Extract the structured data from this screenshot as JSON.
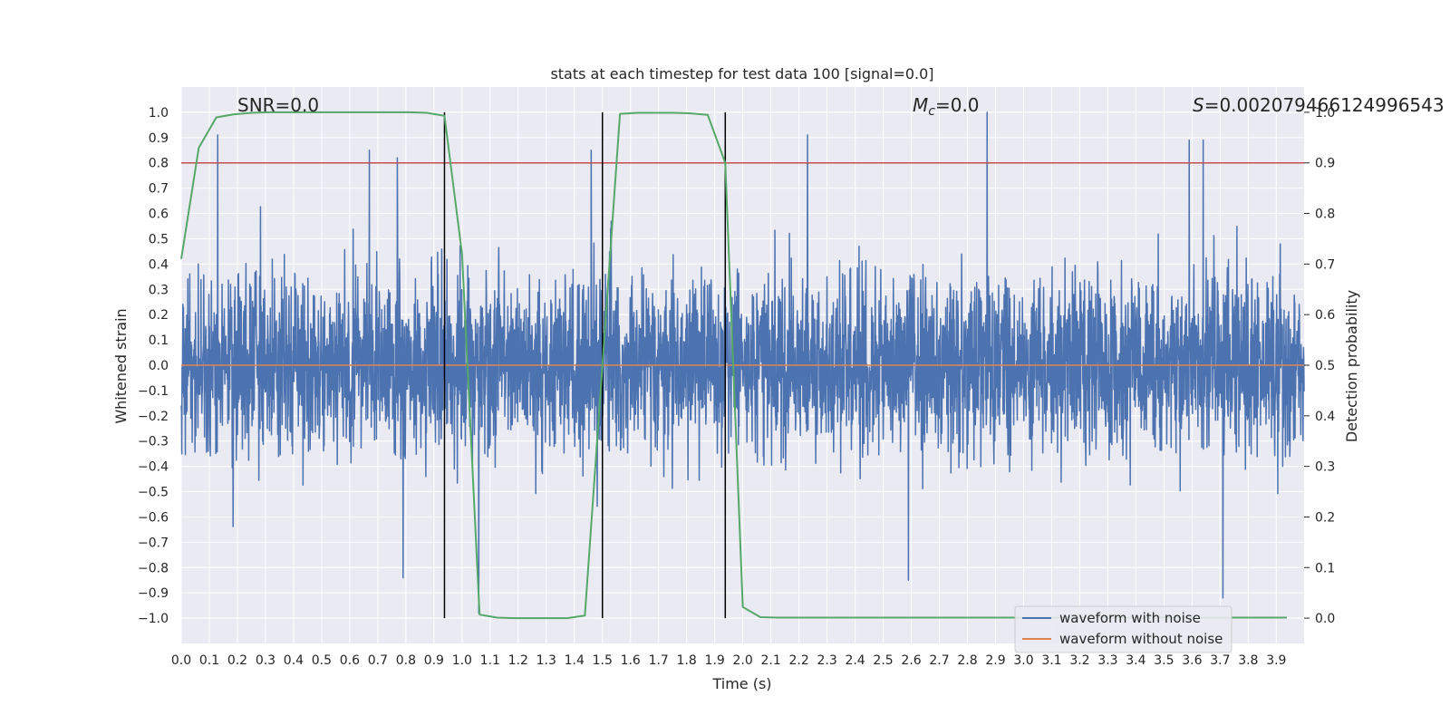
{
  "chart_data": {
    "type": "line",
    "title": "stats at each timestep for test data 100 [signal=0.0]",
    "xlabel": "Time (s)",
    "ylabel": "Whitened strain",
    "y2label": "Detection probability",
    "xlim": [
      0.0,
      3.999
    ],
    "ylim": [
      -1.1,
      1.1
    ],
    "y2lim": [
      -0.05,
      1.05
    ],
    "xticks": [
      "0.0",
      "0.1",
      "0.2",
      "0.3",
      "0.4",
      "0.5",
      "0.6",
      "0.7",
      "0.8",
      "0.9",
      "1.0",
      "1.1",
      "1.2",
      "1.3",
      "1.4",
      "1.5",
      "1.6",
      "1.7",
      "1.8",
      "1.9",
      "2.0",
      "2.1",
      "2.2",
      "2.3",
      "2.4",
      "2.5",
      "2.6",
      "2.7",
      "2.8",
      "2.9",
      "3.0",
      "3.1",
      "3.2",
      "3.3",
      "3.4",
      "3.5",
      "3.6",
      "3.7",
      "3.8",
      "3.9"
    ],
    "yticks": [
      "1.0",
      "0.9",
      "0.8",
      "0.7",
      "0.6",
      "0.5",
      "0.4",
      "0.3",
      "0.2",
      "0.1",
      "0.0",
      "−0.1",
      "−0.2",
      "−0.3",
      "−0.4",
      "−0.5",
      "−0.6",
      "−0.7",
      "−0.8",
      "−0.9",
      "−1.0"
    ],
    "y2ticks": [
      "1.0",
      "0.9",
      "0.8",
      "0.7",
      "0.6",
      "0.5",
      "0.4",
      "0.3",
      "0.2",
      "0.1",
      "0.0"
    ],
    "grid": true,
    "legend": {
      "location": "lower-right",
      "entries": [
        "waveform with noise",
        "waveform without noise"
      ]
    },
    "annotations": {
      "snr": "SNR=0.0",
      "mc_symbol": "M",
      "mc_sub": "c",
      "mc_value": "=0.0",
      "s_symbol": "S",
      "s_value": "=0.002079466124996543"
    },
    "series": [
      {
        "name": "waveform with noise",
        "color": "#4c72b0",
        "description": "white-noise-like whitened strain, 4096 samples over 0-4 s, amplitude mostly within ±0.5, peaks up to ~1.0 / ~-0.98",
        "notable_peaks": [
          {
            "x": 0.13,
            "y": 0.91
          },
          {
            "x": 0.67,
            "y": 0.85
          },
          {
            "x": 0.77,
            "y": 0.82
          },
          {
            "x": 0.79,
            "y": -0.84
          },
          {
            "x": 1.06,
            "y": -0.98
          },
          {
            "x": 1.46,
            "y": 0.85
          },
          {
            "x": 2.23,
            "y": 0.91
          },
          {
            "x": 2.59,
            "y": -0.85
          },
          {
            "x": 2.87,
            "y": 1.0
          },
          {
            "x": 3.59,
            "y": 0.89
          },
          {
            "x": 3.64,
            "y": 0.89
          },
          {
            "x": 3.71,
            "y": -0.92
          }
        ]
      },
      {
        "name": "waveform without noise",
        "color": "#dd8452",
        "x": [
          0.0,
          3.999
        ],
        "y": [
          0.0,
          0.0
        ]
      },
      {
        "name": "detection probability",
        "color": "#55a868",
        "axis": "right",
        "x": [
          0.0,
          0.0625,
          0.125,
          0.1875,
          0.25,
          0.3125,
          0.375,
          0.4375,
          0.5,
          0.5625,
          0.625,
          0.6875,
          0.75,
          0.8125,
          0.875,
          0.9375,
          1.0,
          1.0625,
          1.125,
          1.1875,
          1.25,
          1.3125,
          1.375,
          1.4375,
          1.5,
          1.5625,
          1.625,
          1.6875,
          1.75,
          1.8125,
          1.875,
          1.9375,
          2.0,
          2.0625,
          2.125,
          2.1875,
          2.25,
          2.3125,
          2.375,
          2.4375,
          2.5,
          2.5625,
          2.625,
          2.6875,
          2.75,
          2.8125,
          2.875,
          2.9375,
          3.0,
          3.0625,
          3.125,
          3.1875,
          3.25,
          3.3125,
          3.375,
          3.4375,
          3.5,
          3.5625,
          3.625,
          3.6875,
          3.75,
          3.8125,
          3.875,
          3.9375
        ],
        "y": [
          0.71,
          0.93,
          0.99,
          0.996,
          0.999,
          1.0,
          1.0,
          1.0,
          1.0,
          1.0,
          1.0,
          1.0,
          1.0,
          1.0,
          0.999,
          0.993,
          0.72,
          0.007,
          0.001,
          0.0,
          0.0,
          0.0,
          0.0,
          0.005,
          0.5,
          0.997,
          0.999,
          0.999,
          0.999,
          0.998,
          0.995,
          0.9,
          0.022,
          0.002,
          0.001,
          0.001,
          0.001,
          0.001,
          0.001,
          0.001,
          0.001,
          0.001,
          0.001,
          0.001,
          0.001,
          0.001,
          0.001,
          0.001,
          0.001,
          0.001,
          0.001,
          0.001,
          0.001,
          0.001,
          0.001,
          0.001,
          0.001,
          0.001,
          0.001,
          0.001,
          0.001,
          0.001,
          0.001,
          0.001
        ]
      }
    ],
    "threshold_line": {
      "axis": "right",
      "value": 0.9,
      "color": "#c44e52"
    },
    "vertical_lines": {
      "color": "#000000",
      "x": [
        0.9375,
        1.5,
        1.9375
      ],
      "ymin": 0.0,
      "ymax": 1.0
    }
  }
}
